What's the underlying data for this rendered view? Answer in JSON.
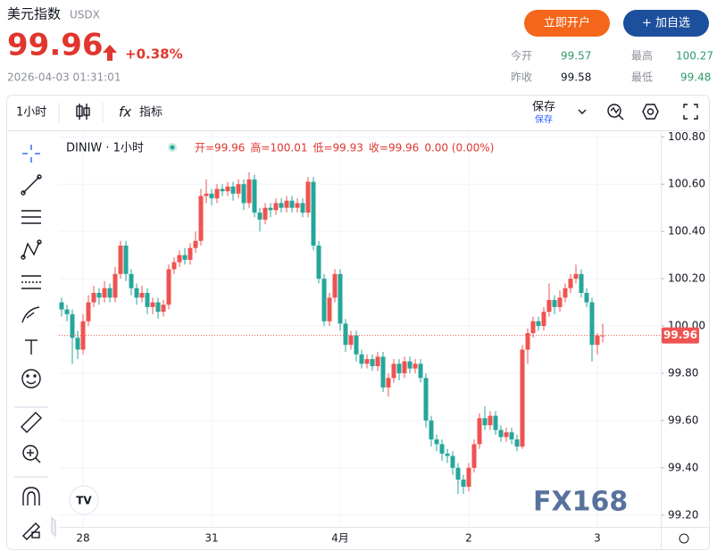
{
  "header": {
    "title": "美元指数",
    "code": "USDX",
    "price": "99.96",
    "change": "+0.38%",
    "time": "2026-04-03 01:31:01",
    "buttons": [
      "立即开户",
      "+ 加自选"
    ]
  },
  "stats": [
    {
      "label": "今开",
      "value": "99.57"
    },
    {
      "label": "最高",
      "value": "100.27"
    },
    {
      "label": "昨收",
      "value": "99.58"
    },
    {
      "label": "最低",
      "value": "99.48"
    }
  ],
  "toolbar": {
    "interval": "1小时",
    "indicators": "指标",
    "save": "保存",
    "save_sub": "保存"
  },
  "chart_data": {
    "type": "candlestick",
    "symbol": "DINIW · 1小时",
    "legend": [
      "开=99.96",
      "高=100.01",
      "低=99.93",
      "收=99.96",
      "0.00 (0.00%)"
    ],
    "watermark": "FX168",
    "up_color": "#ef5350",
    "down_color": "#26a69a",
    "grid": true,
    "price_line": 99.96,
    "ylim": [
      99.15,
      100.82
    ],
    "yticks": [
      {
        "value": 99.2,
        "label": "99.20"
      },
      {
        "value": 99.4,
        "label": "99.40"
      },
      {
        "value": 99.6,
        "label": "99.60"
      },
      {
        "value": 99.8,
        "label": "99.80"
      },
      {
        "value": 100.0,
        "label": "100.00"
      },
      {
        "value": 100.2,
        "label": "100.20"
      },
      {
        "value": 100.4,
        "label": "100.40"
      },
      {
        "value": 100.6,
        "label": "100.60"
      },
      {
        "value": 100.8,
        "label": "100.80"
      }
    ],
    "categories": [
      null,
      null,
      null,
      null,
      "28",
      null,
      null,
      null,
      null,
      null,
      null,
      null,
      null,
      null,
      null,
      null,
      null,
      null,
      null,
      null,
      null,
      null,
      null,
      null,
      null,
      null,
      null,
      null,
      "31",
      null,
      null,
      null,
      null,
      null,
      null,
      null,
      null,
      null,
      null,
      null,
      null,
      null,
      null,
      null,
      null,
      null,
      null,
      null,
      null,
      null,
      null,
      null,
      "4月",
      null,
      null,
      null,
      null,
      null,
      null,
      null,
      null,
      null,
      null,
      null,
      null,
      null,
      null,
      null,
      null,
      null,
      null,
      null,
      null,
      null,
      null,
      null,
      "2",
      null,
      null,
      null,
      null,
      null,
      null,
      null,
      null,
      null,
      null,
      null,
      null,
      null,
      null,
      null,
      null,
      null,
      null,
      null,
      null,
      null,
      null,
      null,
      "3",
      null
    ],
    "open": [
      100.1,
      100.07,
      100.05,
      99.95,
      99.9,
      100.02,
      100.1,
      100.14,
      100.12,
      100.16,
      100.12,
      100.22,
      100.34,
      100.22,
      100.16,
      100.12,
      100.14,
      100.08,
      100.1,
      100.06,
      100.09,
      100.24,
      100.27,
      100.3,
      100.28,
      100.33,
      100.36,
      100.55,
      100.56,
      100.54,
      100.58,
      100.57,
      100.59,
      100.56,
      100.6,
      100.52,
      100.62,
      100.48,
      100.45,
      100.5,
      100.49,
      100.52,
      100.5,
      100.53,
      100.5,
      100.52,
      100.48,
      100.61,
      100.34,
      100.2,
      100.02,
      100.12,
      100.22,
      100.01,
      99.92,
      99.96,
      99.88,
      99.84,
      99.86,
      99.83,
      99.87,
      99.74,
      99.78,
      99.84,
      99.8,
      99.85,
      99.82,
      99.84,
      99.78,
      99.6,
      99.52,
      99.5,
      99.46,
      99.45,
      99.4,
      99.35,
      99.32,
      99.4,
      99.5,
      99.61,
      99.58,
      99.62,
      99.56,
      99.53,
      99.55,
      99.52,
      99.49,
      99.9,
      99.97,
      100.02,
      100.0,
      100.06,
      100.11,
      100.08,
      100.12,
      100.16,
      100.2,
      100.22,
      100.14,
      100.1,
      99.92,
      99.96
    ],
    "high": [
      100.12,
      100.09,
      100.07,
      99.98,
      100.05,
      100.13,
      100.17,
      100.16,
      100.19,
      100.18,
      100.25,
      100.36,
      100.36,
      100.24,
      100.18,
      100.17,
      100.16,
      100.12,
      100.12,
      100.11,
      100.26,
      100.29,
      100.32,
      100.33,
      100.35,
      100.4,
      100.58,
      100.62,
      100.58,
      100.6,
      100.6,
      100.61,
      100.61,
      100.62,
      100.62,
      100.65,
      100.64,
      100.5,
      100.52,
      100.52,
      100.54,
      100.54,
      100.55,
      100.55,
      100.54,
      100.54,
      100.63,
      100.63,
      100.36,
      100.22,
      100.14,
      100.24,
      100.24,
      100.03,
      99.98,
      99.98,
      99.9,
      99.88,
      99.88,
      99.89,
      99.89,
      99.8,
      99.86,
      99.86,
      99.87,
      99.87,
      99.86,
      99.86,
      99.8,
      99.62,
      99.54,
      99.52,
      99.48,
      99.47,
      99.42,
      99.37,
      99.42,
      99.52,
      99.63,
      99.66,
      99.64,
      99.64,
      99.58,
      99.57,
      99.57,
      99.54,
      99.92,
      99.99,
      100.04,
      100.04,
      100.08,
      100.18,
      100.13,
      100.15,
      100.18,
      100.22,
      100.26,
      100.24,
      100.16,
      100.12,
      99.97,
      100.01
    ],
    "low": [
      100.04,
      100.02,
      99.84,
      99.86,
      99.88,
      100.0,
      100.08,
      100.09,
      100.1,
      100.1,
      100.1,
      100.2,
      100.19,
      100.13,
      100.09,
      100.1,
      100.05,
      100.05,
      100.03,
      100.04,
      100.07,
      100.22,
      100.25,
      100.26,
      100.26,
      100.31,
      100.34,
      100.52,
      100.51,
      100.52,
      100.55,
      100.55,
      100.53,
      100.54,
      100.49,
      100.5,
      100.46,
      100.4,
      100.43,
      100.46,
      100.47,
      100.48,
      100.48,
      100.48,
      100.48,
      100.46,
      100.46,
      100.32,
      100.18,
      100.0,
      100.0,
      100.1,
      99.98,
      99.89,
      99.9,
      99.85,
      99.82,
      99.82,
      99.81,
      99.81,
      99.72,
      99.7,
      99.76,
      99.77,
      99.78,
      99.8,
      99.8,
      99.76,
      99.57,
      99.49,
      99.47,
      99.43,
      99.42,
      99.37,
      99.29,
      99.29,
      99.3,
      99.38,
      99.48,
      99.56,
      99.56,
      99.54,
      99.51,
      99.51,
      99.5,
      99.47,
      99.48,
      99.84,
      99.95,
      99.98,
      99.98,
      100.04,
      100.05,
      100.06,
      100.1,
      100.14,
      100.18,
      100.12,
      100.08,
      99.85,
      99.88,
      99.93
    ],
    "close": [
      100.07,
      100.05,
      99.95,
      99.9,
      100.02,
      100.1,
      100.14,
      100.12,
      100.16,
      100.12,
      100.22,
      100.34,
      100.22,
      100.16,
      100.12,
      100.14,
      100.08,
      100.1,
      100.06,
      100.09,
      100.24,
      100.27,
      100.3,
      100.28,
      100.33,
      100.36,
      100.55,
      100.56,
      100.54,
      100.58,
      100.57,
      100.59,
      100.56,
      100.6,
      100.52,
      100.62,
      100.48,
      100.45,
      100.5,
      100.49,
      100.52,
      100.5,
      100.53,
      100.5,
      100.52,
      100.48,
      100.61,
      100.34,
      100.2,
      100.02,
      100.12,
      100.22,
      100.01,
      99.92,
      99.96,
      99.88,
      99.84,
      99.86,
      99.83,
      99.87,
      99.74,
      99.78,
      99.84,
      99.8,
      99.85,
      99.82,
      99.84,
      99.78,
      99.6,
      99.52,
      99.5,
      99.46,
      99.45,
      99.4,
      99.35,
      99.32,
      99.4,
      99.5,
      99.61,
      99.58,
      99.62,
      99.56,
      99.53,
      99.55,
      99.52,
      99.49,
      99.9,
      99.97,
      100.02,
      100.0,
      100.06,
      100.11,
      100.08,
      100.12,
      100.16,
      100.2,
      100.22,
      100.14,
      100.1,
      99.92,
      99.96,
      99.96
    ]
  }
}
